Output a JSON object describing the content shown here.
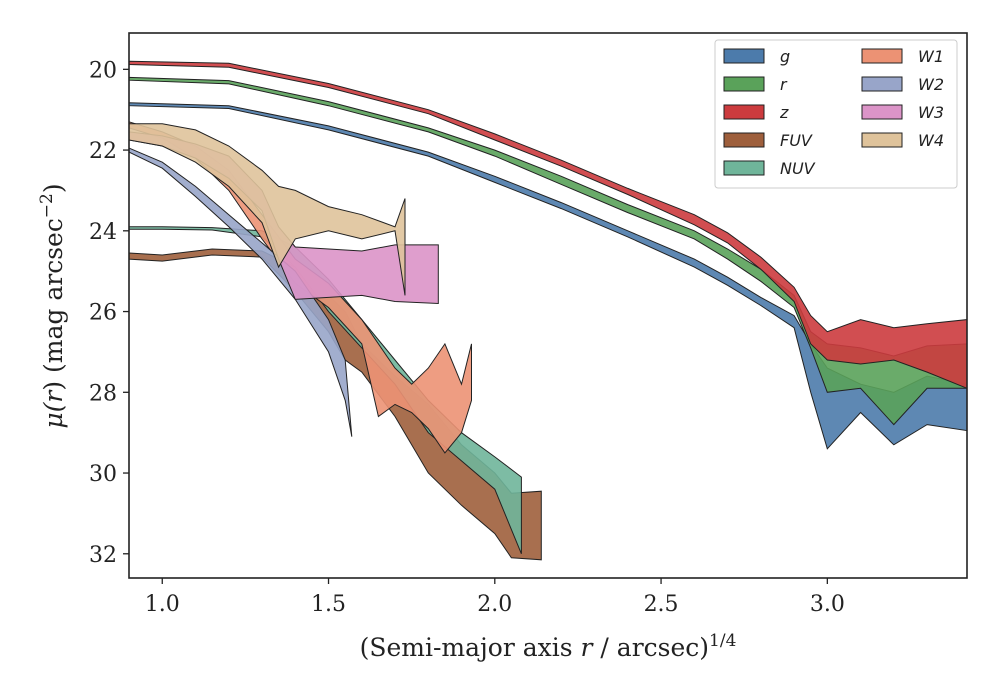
{
  "chart_data": {
    "type": "area",
    "title": "",
    "xlabel": {
      "pre": "(Semi-major axis ",
      "var": "r",
      "post": " / arcsec)",
      "sup": "1/4"
    },
    "ylabel": {
      "pre": "μ(",
      "var": "r",
      "post": ") (mag arcsec",
      "sup": "−2",
      "close": ")"
    },
    "xlim": [
      0.9,
      3.42
    ],
    "ylim": [
      32.6,
      19.1
    ],
    "y_inverted": true,
    "xticks": [
      1.0,
      1.5,
      2.0,
      2.5,
      3.0
    ],
    "xtick_labels": [
      "1.0",
      "1.5",
      "2.0",
      "2.5",
      "3.0"
    ],
    "yticks": [
      20,
      22,
      24,
      26,
      28,
      30,
      32
    ],
    "ytick_labels": [
      "20",
      "22",
      "24",
      "26",
      "28",
      "30",
      "32"
    ],
    "grid": false,
    "legend_position": "top-right",
    "legend_columns": 2,
    "series": [
      {
        "name": "g",
        "color": "#4c7bab",
        "upper": [
          [
            0.9,
            20.83
          ],
          [
            1.2,
            20.9
          ],
          [
            1.5,
            21.4
          ],
          [
            1.8,
            22.05
          ],
          [
            2.0,
            22.65
          ],
          [
            2.2,
            23.3
          ],
          [
            2.4,
            24.0
          ],
          [
            2.6,
            24.7
          ],
          [
            2.7,
            25.15
          ],
          [
            2.8,
            25.65
          ],
          [
            2.9,
            26.1
          ],
          [
            2.95,
            26.8
          ],
          [
            3.0,
            27.4
          ],
          [
            3.1,
            27.8
          ],
          [
            3.2,
            28.0
          ],
          [
            3.3,
            27.6
          ],
          [
            3.42,
            27.8
          ]
        ],
        "lower": [
          [
            0.9,
            20.9
          ],
          [
            1.2,
            20.97
          ],
          [
            1.5,
            21.5
          ],
          [
            1.8,
            22.15
          ],
          [
            2.0,
            22.8
          ],
          [
            2.2,
            23.45
          ],
          [
            2.4,
            24.15
          ],
          [
            2.6,
            24.9
          ],
          [
            2.7,
            25.35
          ],
          [
            2.8,
            25.85
          ],
          [
            2.9,
            26.4
          ],
          [
            2.95,
            28.0
          ],
          [
            3.0,
            29.4
          ],
          [
            3.1,
            28.5
          ],
          [
            3.2,
            29.3
          ],
          [
            3.3,
            28.8
          ],
          [
            3.42,
            28.95
          ]
        ]
      },
      {
        "name": "r",
        "color": "#5aa25a",
        "upper": [
          [
            0.9,
            20.2
          ],
          [
            1.2,
            20.28
          ],
          [
            1.5,
            20.8
          ],
          [
            1.8,
            21.45
          ],
          [
            2.0,
            22.0
          ],
          [
            2.2,
            22.65
          ],
          [
            2.4,
            23.35
          ],
          [
            2.6,
            24.0
          ],
          [
            2.7,
            24.45
          ],
          [
            2.8,
            24.95
          ],
          [
            2.9,
            25.6
          ],
          [
            2.95,
            26.5
          ],
          [
            3.0,
            26.8
          ],
          [
            3.1,
            26.9
          ],
          [
            3.2,
            27.1
          ],
          [
            3.3,
            26.85
          ],
          [
            3.42,
            26.8
          ]
        ],
        "lower": [
          [
            0.9,
            20.27
          ],
          [
            1.2,
            20.36
          ],
          [
            1.5,
            20.9
          ],
          [
            1.8,
            21.55
          ],
          [
            2.0,
            22.15
          ],
          [
            2.2,
            22.85
          ],
          [
            2.4,
            23.55
          ],
          [
            2.6,
            24.2
          ],
          [
            2.7,
            24.7
          ],
          [
            2.8,
            25.25
          ],
          [
            2.9,
            25.9
          ],
          [
            2.95,
            26.9
          ],
          [
            3.0,
            28.0
          ],
          [
            3.1,
            27.9
          ],
          [
            3.2,
            28.8
          ],
          [
            3.3,
            27.9
          ],
          [
            3.42,
            27.9
          ]
        ]
      },
      {
        "name": "z",
        "color": "#cc3b3e",
        "upper": [
          [
            0.9,
            19.8
          ],
          [
            1.2,
            19.85
          ],
          [
            1.5,
            20.35
          ],
          [
            1.8,
            21.0
          ],
          [
            2.0,
            21.6
          ],
          [
            2.2,
            22.25
          ],
          [
            2.4,
            22.95
          ],
          [
            2.6,
            23.6
          ],
          [
            2.7,
            24.05
          ],
          [
            2.8,
            24.65
          ],
          [
            2.9,
            25.4
          ],
          [
            2.95,
            26.1
          ],
          [
            3.0,
            26.5
          ],
          [
            3.1,
            26.2
          ],
          [
            3.2,
            26.4
          ],
          [
            3.3,
            26.3
          ],
          [
            3.42,
            26.2
          ]
        ],
        "lower": [
          [
            0.9,
            19.88
          ],
          [
            1.2,
            19.95
          ],
          [
            1.5,
            20.45
          ],
          [
            1.8,
            21.1
          ],
          [
            2.0,
            21.75
          ],
          [
            2.2,
            22.4
          ],
          [
            2.4,
            23.1
          ],
          [
            2.6,
            23.85
          ],
          [
            2.7,
            24.3
          ],
          [
            2.8,
            24.95
          ],
          [
            2.9,
            25.75
          ],
          [
            2.95,
            26.8
          ],
          [
            3.0,
            27.2
          ],
          [
            3.1,
            27.3
          ],
          [
            3.2,
            27.2
          ],
          [
            3.3,
            27.5
          ],
          [
            3.42,
            27.9
          ]
        ]
      },
      {
        "name": "FUV",
        "color": "#9e5f3c",
        "upper": [
          [
            0.9,
            24.55
          ],
          [
            1.0,
            24.6
          ],
          [
            1.15,
            24.45
          ],
          [
            1.3,
            24.5
          ],
          [
            1.4,
            24.9
          ],
          [
            1.5,
            25.6
          ],
          [
            1.55,
            26.0
          ],
          [
            1.6,
            26.8
          ],
          [
            1.7,
            27.6
          ],
          [
            1.8,
            28.3
          ],
          [
            1.9,
            29.3
          ],
          [
            2.0,
            30.0
          ],
          [
            2.05,
            30.5
          ],
          [
            2.14,
            30.45
          ]
        ],
        "lower": [
          [
            0.9,
            24.7
          ],
          [
            1.0,
            24.75
          ],
          [
            1.15,
            24.6
          ],
          [
            1.3,
            24.65
          ],
          [
            1.4,
            25.5
          ],
          [
            1.5,
            26.5
          ],
          [
            1.55,
            27.2
          ],
          [
            1.6,
            27.5
          ],
          [
            1.7,
            28.6
          ],
          [
            1.8,
            30.0
          ],
          [
            1.9,
            30.8
          ],
          [
            2.0,
            31.5
          ],
          [
            2.05,
            32.1
          ],
          [
            2.14,
            32.15
          ]
        ]
      },
      {
        "name": "NUV",
        "color": "#6fb59a",
        "upper": [
          [
            0.9,
            23.9
          ],
          [
            1.0,
            23.9
          ],
          [
            1.15,
            23.92
          ],
          [
            1.3,
            24.0
          ],
          [
            1.4,
            24.4
          ],
          [
            1.5,
            25.2
          ],
          [
            1.6,
            26.2
          ],
          [
            1.7,
            27.2
          ],
          [
            1.8,
            28.2
          ],
          [
            1.9,
            29.0
          ],
          [
            2.0,
            29.6
          ],
          [
            2.08,
            30.1
          ]
        ],
        "lower": [
          [
            0.9,
            23.96
          ],
          [
            1.0,
            23.96
          ],
          [
            1.15,
            23.98
          ],
          [
            1.3,
            24.15
          ],
          [
            1.4,
            24.9
          ],
          [
            1.5,
            26.0
          ],
          [
            1.6,
            26.9
          ],
          [
            1.7,
            27.8
          ],
          [
            1.8,
            29.0
          ],
          [
            1.9,
            29.7
          ],
          [
            2.0,
            30.4
          ],
          [
            2.08,
            32.0
          ]
        ]
      },
      {
        "name": "W1",
        "color": "#ec9274",
        "upper": [
          [
            0.9,
            21.3
          ],
          [
            1.0,
            21.55
          ],
          [
            1.1,
            21.9
          ],
          [
            1.2,
            22.5
          ],
          [
            1.3,
            23.6
          ],
          [
            1.4,
            24.7
          ],
          [
            1.5,
            25.3
          ],
          [
            1.6,
            26.2
          ],
          [
            1.7,
            27.4
          ],
          [
            1.75,
            27.8
          ],
          [
            1.8,
            27.4
          ],
          [
            1.85,
            26.8
          ],
          [
            1.9,
            27.8
          ],
          [
            1.93,
            26.8
          ]
        ],
        "lower": [
          [
            0.9,
            21.45
          ],
          [
            1.0,
            21.7
          ],
          [
            1.1,
            22.2
          ],
          [
            1.2,
            23.0
          ],
          [
            1.3,
            24.2
          ],
          [
            1.4,
            25.3
          ],
          [
            1.5,
            25.9
          ],
          [
            1.6,
            26.8
          ],
          [
            1.65,
            28.6
          ],
          [
            1.7,
            28.3
          ],
          [
            1.75,
            28.5
          ],
          [
            1.8,
            28.9
          ],
          [
            1.85,
            29.5
          ],
          [
            1.9,
            29.0
          ],
          [
            1.93,
            28.2
          ]
        ]
      },
      {
        "name": "W2",
        "color": "#98a5c9",
        "upper": [
          [
            0.9,
            21.95
          ],
          [
            1.0,
            22.3
          ],
          [
            1.1,
            22.9
          ],
          [
            1.2,
            23.6
          ],
          [
            1.3,
            24.3
          ],
          [
            1.4,
            25.0
          ],
          [
            1.5,
            26.2
          ],
          [
            1.55,
            27.2
          ]
        ],
        "lower": [
          [
            0.9,
            22.05
          ],
          [
            1.0,
            22.45
          ],
          [
            1.1,
            23.15
          ],
          [
            1.2,
            23.9
          ],
          [
            1.3,
            24.7
          ],
          [
            1.4,
            25.7
          ],
          [
            1.5,
            27.0
          ],
          [
            1.55,
            28.2
          ],
          [
            1.57,
            29.1
          ]
        ]
      },
      {
        "name": "W3",
        "color": "#dc94c8",
        "upper": [
          [
            0.9,
            21.55
          ],
          [
            1.0,
            21.65
          ],
          [
            1.1,
            21.85
          ],
          [
            1.2,
            22.15
          ],
          [
            1.3,
            23.0
          ],
          [
            1.35,
            23.9
          ],
          [
            1.4,
            24.4
          ],
          [
            1.6,
            24.5
          ],
          [
            1.7,
            24.35
          ],
          [
            1.83,
            24.35
          ]
        ],
        "lower": [
          [
            0.9,
            21.75
          ],
          [
            1.0,
            21.9
          ],
          [
            1.1,
            22.2
          ],
          [
            1.2,
            22.7
          ],
          [
            1.3,
            23.5
          ],
          [
            1.35,
            24.7
          ],
          [
            1.4,
            25.7
          ],
          [
            1.6,
            25.6
          ],
          [
            1.7,
            25.75
          ],
          [
            1.83,
            25.8
          ]
        ]
      },
      {
        "name": "W4",
        "color": "#dfc39b",
        "upper": [
          [
            0.9,
            21.35
          ],
          [
            1.0,
            21.35
          ],
          [
            1.1,
            21.5
          ],
          [
            1.2,
            21.9
          ],
          [
            1.3,
            22.5
          ],
          [
            1.35,
            22.9
          ],
          [
            1.4,
            23.0
          ],
          [
            1.5,
            23.4
          ],
          [
            1.6,
            23.6
          ],
          [
            1.7,
            23.9
          ],
          [
            1.73,
            23.2
          ]
        ],
        "lower": [
          [
            0.9,
            21.75
          ],
          [
            1.0,
            21.9
          ],
          [
            1.1,
            22.3
          ],
          [
            1.2,
            22.9
          ],
          [
            1.3,
            23.8
          ],
          [
            1.35,
            24.9
          ],
          [
            1.4,
            24.2
          ],
          [
            1.5,
            24.0
          ],
          [
            1.6,
            24.2
          ],
          [
            1.7,
            24.0
          ],
          [
            1.73,
            25.6
          ]
        ]
      }
    ]
  }
}
